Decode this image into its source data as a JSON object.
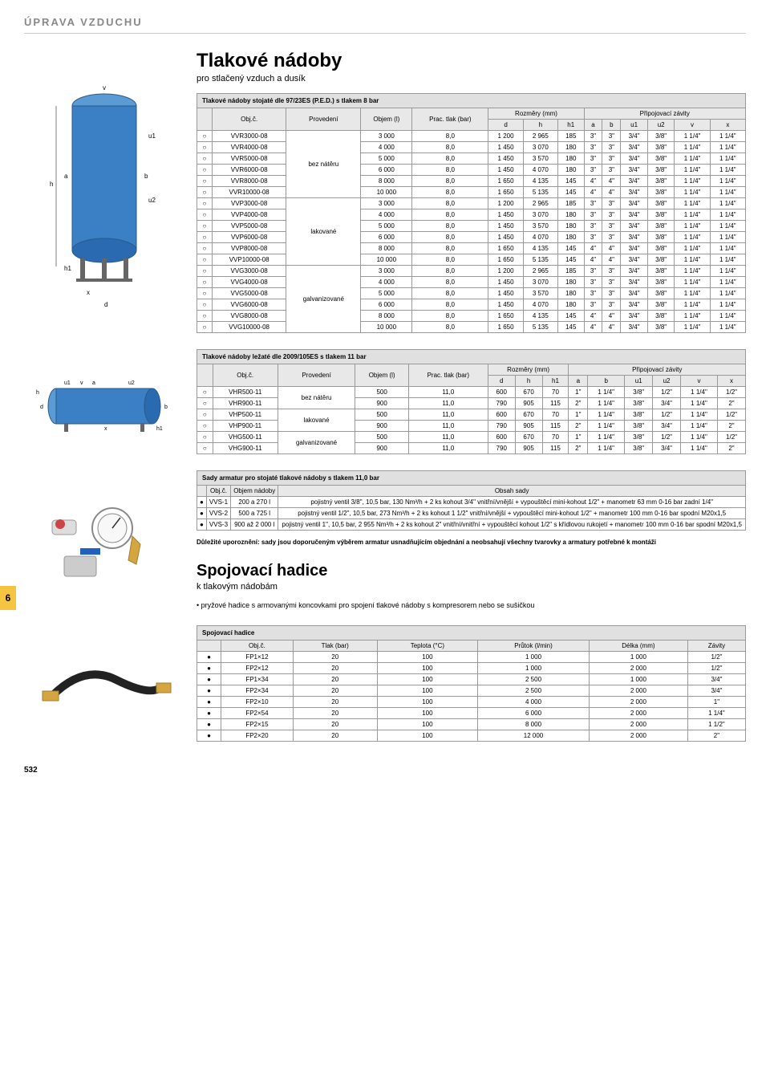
{
  "header": "ÚPRAVA VZDUCHU",
  "title1": "Tlakové nádoby",
  "sub1": "pro stlačený vzduch a dusík",
  "t1": {
    "caption": "Tlakové nádoby stojaté dle 97/23ES (P.E.D.) s tlakem 8 bar",
    "h": {
      "obj": "Obj.č.",
      "prov": "Provedení",
      "objem": "Objem (l)",
      "tlak": "Prac. tlak (bar)",
      "rozmery": "Rozměry (mm)",
      "zavity": "Připojovací závity",
      "d": "d",
      "h": "h",
      "h1": "h1",
      "a": "a",
      "b": "b",
      "u1": "u1",
      "u2": "u2",
      "v": "v",
      "x": "x"
    },
    "provs": [
      "bez nátěru",
      "lakované",
      "galvanizované"
    ],
    "rows": [
      [
        "○",
        "VVR3000-08",
        0,
        "3 000",
        "8,0",
        "1 200",
        "2 965",
        "185",
        "3\"",
        "3\"",
        "3/4\"",
        "3/8\"",
        "1 1/4\"",
        "1 1/4\""
      ],
      [
        "○",
        "VVR4000-08",
        0,
        "4 000",
        "8,0",
        "1 450",
        "3 070",
        "180",
        "3\"",
        "3\"",
        "3/4\"",
        "3/8\"",
        "1 1/4\"",
        "1 1/4\""
      ],
      [
        "○",
        "VVR5000-08",
        0,
        "5 000",
        "8,0",
        "1 450",
        "3 570",
        "180",
        "3\"",
        "3\"",
        "3/4\"",
        "3/8\"",
        "1 1/4\"",
        "1 1/4\""
      ],
      [
        "○",
        "VVR6000-08",
        0,
        "6 000",
        "8,0",
        "1 450",
        "4 070",
        "180",
        "3\"",
        "3\"",
        "3/4\"",
        "3/8\"",
        "1 1/4\"",
        "1 1/4\""
      ],
      [
        "○",
        "VVR8000-08",
        0,
        "8 000",
        "8,0",
        "1 650",
        "4 135",
        "145",
        "4\"",
        "4\"",
        "3/4\"",
        "3/8\"",
        "1 1/4\"",
        "1 1/4\""
      ],
      [
        "○",
        "VVR10000-08",
        0,
        "10 000",
        "8,0",
        "1 650",
        "5 135",
        "145",
        "4\"",
        "4\"",
        "3/4\"",
        "3/8\"",
        "1 1/4\"",
        "1 1/4\""
      ],
      [
        "○",
        "VVP3000-08",
        1,
        "3 000",
        "8,0",
        "1 200",
        "2 965",
        "185",
        "3\"",
        "3\"",
        "3/4\"",
        "3/8\"",
        "1 1/4\"",
        "1 1/4\""
      ],
      [
        "○",
        "VVP4000-08",
        1,
        "4 000",
        "8,0",
        "1 450",
        "3 070",
        "180",
        "3\"",
        "3\"",
        "3/4\"",
        "3/8\"",
        "1 1/4\"",
        "1 1/4\""
      ],
      [
        "○",
        "VVP5000-08",
        1,
        "5 000",
        "8,0",
        "1 450",
        "3 570",
        "180",
        "3\"",
        "3\"",
        "3/4\"",
        "3/8\"",
        "1 1/4\"",
        "1 1/4\""
      ],
      [
        "○",
        "VVP6000-08",
        1,
        "6 000",
        "8,0",
        "1 450",
        "4 070",
        "180",
        "3\"",
        "3\"",
        "3/4\"",
        "3/8\"",
        "1 1/4\"",
        "1 1/4\""
      ],
      [
        "○",
        "VVP8000-08",
        1,
        "8 000",
        "8,0",
        "1 650",
        "4 135",
        "145",
        "4\"",
        "4\"",
        "3/4\"",
        "3/8\"",
        "1 1/4\"",
        "1 1/4\""
      ],
      [
        "○",
        "VVP10000-08",
        1,
        "10 000",
        "8,0",
        "1 650",
        "5 135",
        "145",
        "4\"",
        "4\"",
        "3/4\"",
        "3/8\"",
        "1 1/4\"",
        "1 1/4\""
      ],
      [
        "○",
        "VVG3000-08",
        2,
        "3 000",
        "8,0",
        "1 200",
        "2 965",
        "185",
        "3\"",
        "3\"",
        "3/4\"",
        "3/8\"",
        "1 1/4\"",
        "1 1/4\""
      ],
      [
        "○",
        "VVG4000-08",
        2,
        "4 000",
        "8,0",
        "1 450",
        "3 070",
        "180",
        "3\"",
        "3\"",
        "3/4\"",
        "3/8\"",
        "1 1/4\"",
        "1 1/4\""
      ],
      [
        "○",
        "VVG5000-08",
        2,
        "5 000",
        "8,0",
        "1 450",
        "3 570",
        "180",
        "3\"",
        "3\"",
        "3/4\"",
        "3/8\"",
        "1 1/4\"",
        "1 1/4\""
      ],
      [
        "○",
        "VVG6000-08",
        2,
        "6 000",
        "8,0",
        "1 450",
        "4 070",
        "180",
        "3\"",
        "3\"",
        "3/4\"",
        "3/8\"",
        "1 1/4\"",
        "1 1/4\""
      ],
      [
        "○",
        "VVG8000-08",
        2,
        "8 000",
        "8,0",
        "1 650",
        "4 135",
        "145",
        "4\"",
        "4\"",
        "3/4\"",
        "3/8\"",
        "1 1/4\"",
        "1 1/4\""
      ],
      [
        "○",
        "VVG10000-08",
        2,
        "10 000",
        "8,0",
        "1 650",
        "5 135",
        "145",
        "4\"",
        "4\"",
        "3/4\"",
        "3/8\"",
        "1 1/4\"",
        "1 1/4\""
      ]
    ]
  },
  "t2": {
    "caption": "Tlakové nádoby ležaté dle 2009/105ES s tlakem 11 bar",
    "rows": [
      [
        "○",
        "VHR500-11",
        0,
        "500",
        "11,0",
        "600",
        "670",
        "70",
        "1\"",
        "1 1/4\"",
        "3/8\"",
        "1/2\"",
        "1 1/4\"",
        "1/2\""
      ],
      [
        "○",
        "VHR900-11",
        0,
        "900",
        "11,0",
        "790",
        "905",
        "115",
        "2\"",
        "1 1/4\"",
        "3/8\"",
        "3/4\"",
        "1 1/4\"",
        "2\""
      ],
      [
        "○",
        "VHP500-11",
        1,
        "500",
        "11,0",
        "600",
        "670",
        "70",
        "1\"",
        "1 1/4\"",
        "3/8\"",
        "1/2\"",
        "1 1/4\"",
        "1/2\""
      ],
      [
        "○",
        "VHP900-11",
        1,
        "900",
        "11,0",
        "790",
        "905",
        "115",
        "2\"",
        "1 1/4\"",
        "3/8\"",
        "3/4\"",
        "1 1/4\"",
        "2\""
      ],
      [
        "○",
        "VHG500-11",
        2,
        "500",
        "11,0",
        "600",
        "670",
        "70",
        "1\"",
        "1 1/4\"",
        "3/8\"",
        "1/2\"",
        "1 1/4\"",
        "1/2\""
      ],
      [
        "○",
        "VHG900-11",
        2,
        "900",
        "11,0",
        "790",
        "905",
        "115",
        "2\"",
        "1 1/4\"",
        "3/8\"",
        "3/4\"",
        "1 1/4\"",
        "2\""
      ]
    ]
  },
  "t3": {
    "caption": "Sady armatur pro stojaté tlakové nádoby s tlakem 11,0 bar",
    "h": {
      "obj": "Obj.č.",
      "objem": "Objem nádoby",
      "obsah": "Obsah sady"
    },
    "rows": [
      [
        "●",
        "VVS-1",
        "200 a 270 l",
        "pojistný ventil 3/8\", 10,5 bar, 130 Nm³/h + 2 ks kohout 3/4\" vnitřní/vnější + vypouštěcí mini-kohout 1/2\" + manometr 63 mm 0-16 bar zadní 1/4\""
      ],
      [
        "●",
        "VVS-2",
        "500 a 725 l",
        "pojistný ventil 1/2\", 10,5 bar, 273 Nm³/h + 2 ks kohout 1 1/2\" vnitřní/vnější + vypouštěcí mini-kohout 1/2\" + manometr 100 mm 0-16 bar spodní M20x1,5"
      ],
      [
        "●",
        "VVS-3",
        "900 až 2 000 l",
        "pojistný ventil 1\", 10,5 bar, 2 955 Nm³/h + 2 ks kohout 2\" vnitřní/vnitřní + vypouštěcí kohout 1/2\" s křídlovou rukojetí + manometr 100 mm 0-16 bar spodní M20x1,5"
      ]
    ]
  },
  "note3": "Důležité uporoznění: sady jsou doporučeným výběrem armatur usnadňujícím objednání a neobsahují všechny tvarovky a armatury potřebné k montáži",
  "title2": "Spojovací hadice",
  "sub2": "k tlakovým nádobám",
  "bullet2": "• pryžové hadice s armovanými koncovkami pro spojení tlakové nádoby s kompresorem nebo se sušičkou",
  "t4": {
    "caption": "Spojovací hadice",
    "h": [
      "Obj.č.",
      "Tlak (bar)",
      "Teplota (°C)",
      "Průtok (l/min)",
      "Délka (mm)",
      "Závity"
    ],
    "rows": [
      [
        "●",
        "FP1×12",
        "20",
        "100",
        "1 000",
        "1 000",
        "1/2\""
      ],
      [
        "●",
        "FP2×12",
        "20",
        "100",
        "1 000",
        "2 000",
        "1/2\""
      ],
      [
        "●",
        "FP1×34",
        "20",
        "100",
        "2 500",
        "1 000",
        "3/4\""
      ],
      [
        "●",
        "FP2×34",
        "20",
        "100",
        "2 500",
        "2 000",
        "3/4\""
      ],
      [
        "●",
        "FP2×10",
        "20",
        "100",
        "4 000",
        "2 000",
        "1\""
      ],
      [
        "●",
        "FP2×54",
        "20",
        "100",
        "6 000",
        "2 000",
        "1 1/4\""
      ],
      [
        "●",
        "FP2×15",
        "20",
        "100",
        "8 000",
        "2 000",
        "1 1/2\""
      ],
      [
        "●",
        "FP2×20",
        "20",
        "100",
        "12 000",
        "2 000",
        "2\""
      ]
    ]
  },
  "pagenum": "532",
  "tab": "6",
  "colors": {
    "tank": "#3b7fc4",
    "accent": "#f5c542",
    "gray": "#e8e8e8"
  }
}
